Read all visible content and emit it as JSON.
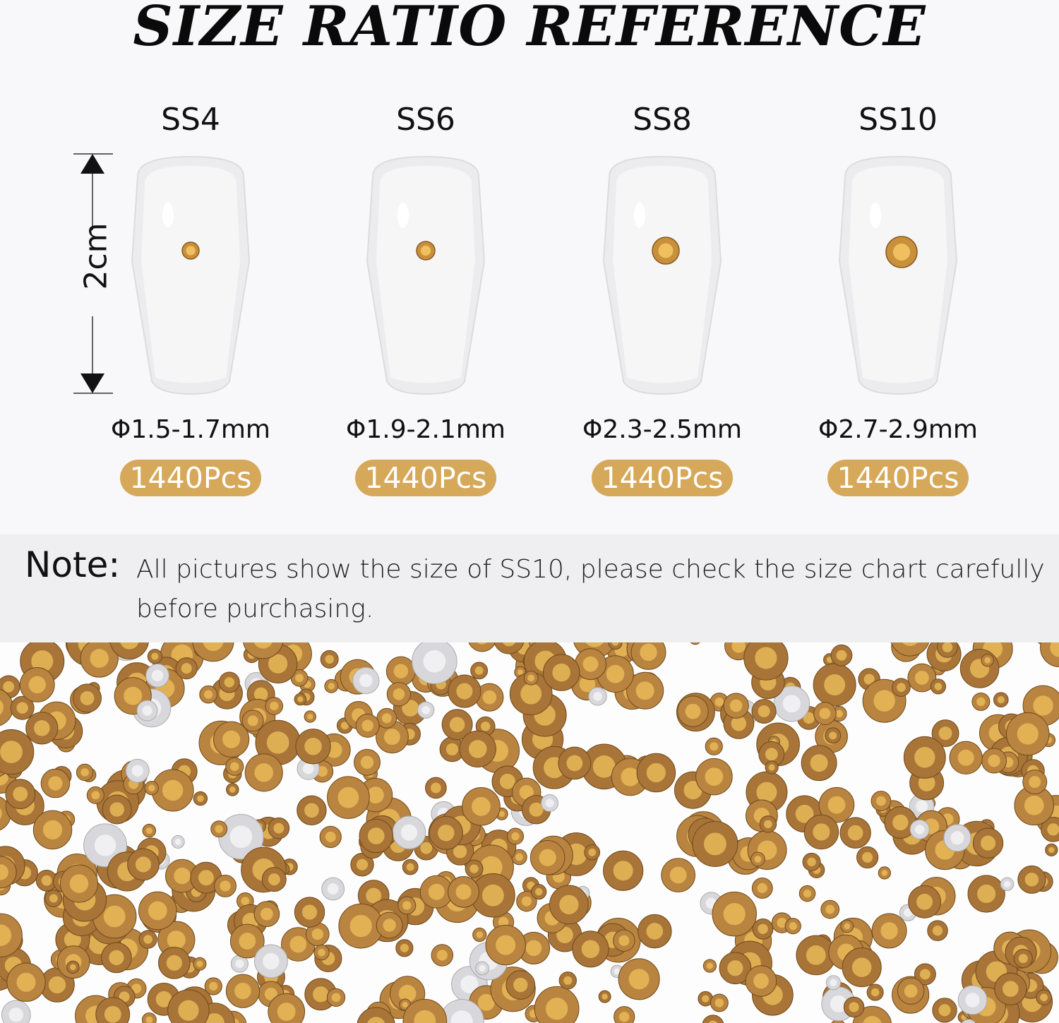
{
  "title": "SIZE RATIO REFERENCE",
  "measurement_label": "2cm",
  "sizes": [
    {
      "name": "SS4",
      "diameter": "Φ1.5-1.7mm",
      "count": "1440Pcs"
    },
    {
      "name": "SS6",
      "diameter": "Φ1.9-2.1mm",
      "count": "1440Pcs"
    },
    {
      "name": "SS8",
      "diameter": "Φ2.3-2.5mm",
      "count": "1440Pcs"
    },
    {
      "name": "SS10",
      "diameter": "Φ2.7-2.9mm",
      "count": "1440Pcs"
    }
  ],
  "note": {
    "label": "Note:",
    "text": "All pictures show the size of SS10, please check the size chart carefully before purchasing."
  },
  "colors": {
    "badge": "#d6a85a",
    "gem": "#c8903a",
    "gem_light": "#f0c060",
    "note_bg": "#efeff1"
  }
}
